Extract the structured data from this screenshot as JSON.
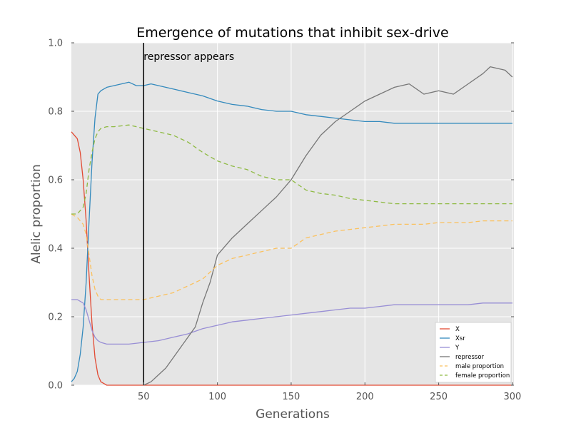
{
  "chart_data": {
    "type": "line",
    "title": "Emergence of mutations that inhibit sex-drive",
    "xlabel": "Generations",
    "ylabel": "Alelic proportion",
    "xlim": [
      1,
      301
    ],
    "ylim": [
      0,
      1.0
    ],
    "x_ticks": [
      50,
      100,
      150,
      200,
      250,
      300
    ],
    "y_ticks": [
      "0.0",
      "0.2",
      "0.4",
      "0.6",
      "0.8",
      "1.0"
    ],
    "grid": true,
    "legend_position": "lower-right",
    "annotation": {
      "text": "repressor appears",
      "x": 50
    },
    "series": [
      {
        "name": "X",
        "color": "#E24A33",
        "style": "solid",
        "x": [
          1,
          3,
          5,
          7,
          9,
          11,
          13,
          15,
          17,
          19,
          21,
          25,
          30,
          40,
          60,
          100,
          150,
          200,
          250,
          300
        ],
        "values": [
          0.74,
          0.73,
          0.72,
          0.68,
          0.6,
          0.48,
          0.32,
          0.18,
          0.08,
          0.03,
          0.01,
          0.0,
          0.0,
          0.0,
          0.0,
          0.0,
          0.0,
          0.0,
          0.0,
          0.0
        ]
      },
      {
        "name": "Xsr",
        "color": "#348ABD",
        "style": "solid",
        "x": [
          1,
          3,
          5,
          7,
          9,
          11,
          13,
          15,
          17,
          19,
          21,
          25,
          30,
          35,
          40,
          45,
          50,
          55,
          60,
          70,
          80,
          90,
          100,
          110,
          120,
          130,
          140,
          150,
          160,
          170,
          180,
          190,
          200,
          210,
          220,
          230,
          240,
          250,
          260,
          270,
          280,
          290,
          300
        ],
        "values": [
          0.01,
          0.02,
          0.04,
          0.09,
          0.17,
          0.3,
          0.48,
          0.65,
          0.78,
          0.85,
          0.86,
          0.87,
          0.875,
          0.88,
          0.885,
          0.875,
          0.875,
          0.88,
          0.875,
          0.865,
          0.855,
          0.845,
          0.83,
          0.82,
          0.815,
          0.805,
          0.8,
          0.8,
          0.79,
          0.785,
          0.78,
          0.775,
          0.77,
          0.77,
          0.765,
          0.765,
          0.765,
          0.765,
          0.765,
          0.765,
          0.765,
          0.765,
          0.765
        ]
      },
      {
        "name": "Y",
        "color": "#988ED5",
        "style": "solid",
        "x": [
          1,
          5,
          9,
          11,
          13,
          15,
          17,
          19,
          21,
          25,
          30,
          40,
          50,
          60,
          70,
          80,
          90,
          100,
          110,
          120,
          130,
          140,
          150,
          160,
          170,
          180,
          190,
          200,
          210,
          220,
          230,
          240,
          250,
          260,
          270,
          280,
          290,
          300
        ],
        "values": [
          0.25,
          0.25,
          0.24,
          0.22,
          0.19,
          0.16,
          0.14,
          0.13,
          0.125,
          0.12,
          0.12,
          0.12,
          0.125,
          0.13,
          0.14,
          0.15,
          0.165,
          0.175,
          0.185,
          0.19,
          0.195,
          0.2,
          0.205,
          0.21,
          0.215,
          0.22,
          0.225,
          0.225,
          0.23,
          0.235,
          0.235,
          0.235,
          0.235,
          0.235,
          0.235,
          0.24,
          0.24,
          0.24
        ]
      },
      {
        "name": "repressor",
        "color": "#777777",
        "style": "solid",
        "x": [
          50,
          55,
          60,
          65,
          70,
          75,
          80,
          85,
          90,
          95,
          100,
          110,
          120,
          130,
          140,
          150,
          160,
          170,
          180,
          190,
          200,
          210,
          220,
          230,
          240,
          250,
          260,
          270,
          280,
          285,
          290,
          295,
          300
        ],
        "values": [
          0.0,
          0.01,
          0.03,
          0.05,
          0.08,
          0.11,
          0.14,
          0.17,
          0.24,
          0.3,
          0.38,
          0.43,
          0.47,
          0.51,
          0.55,
          0.6,
          0.67,
          0.73,
          0.77,
          0.8,
          0.83,
          0.85,
          0.87,
          0.88,
          0.85,
          0.86,
          0.85,
          0.88,
          0.91,
          0.93,
          0.925,
          0.92,
          0.9
        ]
      },
      {
        "name": "male proportion",
        "color": "#FBC15E",
        "style": "dashed",
        "x": [
          1,
          5,
          9,
          11,
          13,
          15,
          17,
          19,
          21,
          25,
          30,
          40,
          50,
          60,
          70,
          80,
          90,
          100,
          110,
          120,
          130,
          140,
          150,
          160,
          170,
          180,
          190,
          200,
          210,
          220,
          230,
          240,
          250,
          260,
          270,
          280,
          290,
          300
        ],
        "values": [
          0.5,
          0.49,
          0.47,
          0.44,
          0.38,
          0.32,
          0.28,
          0.26,
          0.25,
          0.25,
          0.25,
          0.25,
          0.25,
          0.26,
          0.27,
          0.29,
          0.31,
          0.35,
          0.37,
          0.38,
          0.39,
          0.4,
          0.4,
          0.43,
          0.44,
          0.45,
          0.455,
          0.46,
          0.465,
          0.47,
          0.47,
          0.47,
          0.475,
          0.475,
          0.475,
          0.48,
          0.48,
          0.48
        ]
      },
      {
        "name": "female proportion",
        "color": "#8EBA42",
        "style": "dashed",
        "x": [
          1,
          5,
          9,
          11,
          13,
          15,
          17,
          19,
          21,
          25,
          30,
          40,
          50,
          60,
          70,
          80,
          90,
          100,
          110,
          120,
          130,
          140,
          150,
          160,
          170,
          180,
          190,
          200,
          210,
          220,
          230,
          240,
          250,
          260,
          270,
          280,
          290,
          300
        ],
        "values": [
          0.5,
          0.5,
          0.52,
          0.56,
          0.63,
          0.68,
          0.72,
          0.74,
          0.75,
          0.755,
          0.755,
          0.76,
          0.75,
          0.74,
          0.73,
          0.71,
          0.68,
          0.655,
          0.64,
          0.63,
          0.61,
          0.6,
          0.6,
          0.57,
          0.56,
          0.555,
          0.545,
          0.54,
          0.535,
          0.53,
          0.53,
          0.53,
          0.53,
          0.53,
          0.53,
          0.53,
          0.53,
          0.53
        ]
      }
    ]
  }
}
